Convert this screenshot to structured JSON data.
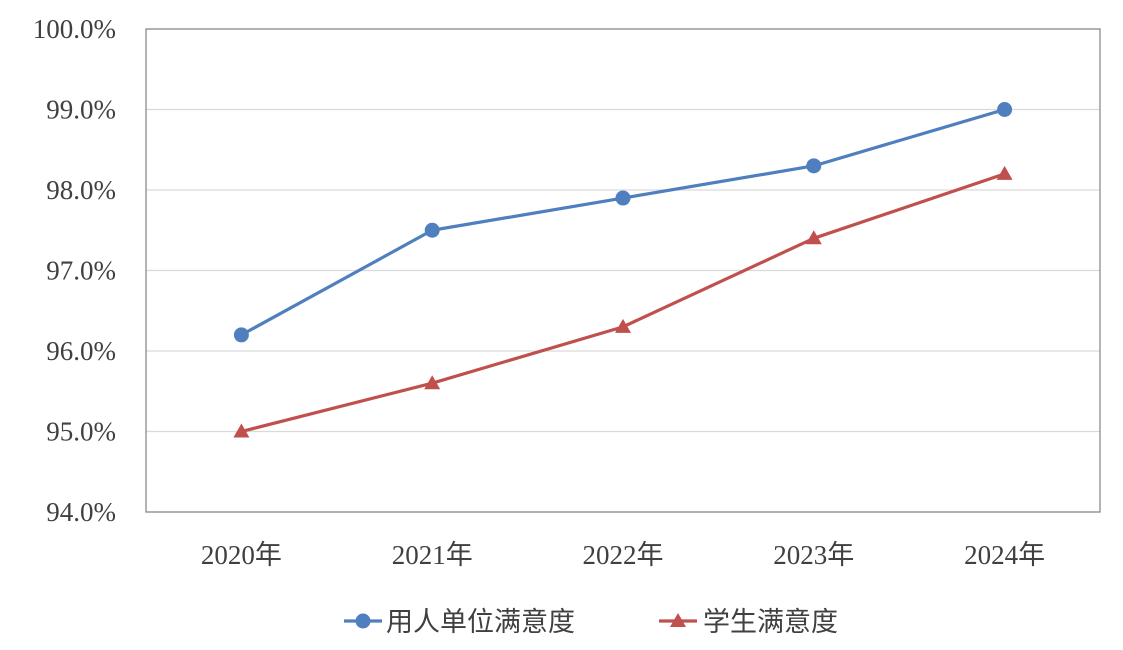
{
  "chart_data": {
    "type": "line",
    "categories": [
      "2020年",
      "2021年",
      "2022年",
      "2023年",
      "2024年"
    ],
    "series": [
      {
        "name": "用人单位满意度",
        "values": [
          96.2,
          97.5,
          97.9,
          98.3,
          99.0
        ],
        "color": "#4F7FBF",
        "marker": "circle"
      },
      {
        "name": "学生满意度",
        "values": [
          95.0,
          95.6,
          96.3,
          97.4,
          98.2
        ],
        "color": "#C0504D",
        "marker": "triangle"
      }
    ],
    "y_ticks": [
      "94.0%",
      "95.0%",
      "96.0%",
      "97.0%",
      "98.0%",
      "99.0%",
      "100.0%"
    ],
    "ylim": [
      94.0,
      100.0
    ],
    "title": "",
    "xlabel": "",
    "ylabel": "",
    "grid": true,
    "legend_position": "bottom"
  },
  "colors": {
    "grid": "#D9D9D9",
    "plot_border": "#8C8C8C",
    "text": "#404040"
  }
}
